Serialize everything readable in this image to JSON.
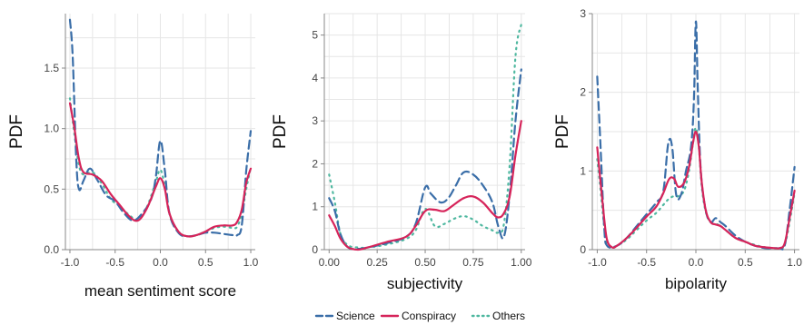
{
  "colors": {
    "science": "#3a6ea8",
    "conspiracy": "#d6245a",
    "others": "#4fb8a0",
    "grid": "#e6e6e6",
    "axis": "#888888"
  },
  "legend": {
    "items": [
      {
        "key": "science",
        "label": "Science",
        "dash": "dashed"
      },
      {
        "key": "conspiracy",
        "label": "Conspiracy",
        "dash": "solid"
      },
      {
        "key": "others",
        "label": "Others",
        "dash": "dotted"
      }
    ]
  },
  "chart_data": [
    {
      "type": "line",
      "title": "",
      "xlabel": "mean sentiment score",
      "ylabel": "PDF",
      "xlim": [
        -1.05,
        1.05
      ],
      "ylim": [
        0,
        1.95
      ],
      "xticks": [
        -1.0,
        -0.5,
        0.0,
        0.5,
        1.0
      ],
      "xtick_labels": [
        "-1.0",
        "-0.5",
        "0.0",
        "0.5",
        "1.0"
      ],
      "yticks": [
        0.0,
        0.5,
        1.0,
        1.5
      ],
      "ytick_labels": [
        "0.0",
        "0.5",
        "1.0",
        "1.5"
      ],
      "grid": true,
      "series": [
        {
          "key": "science",
          "points": [
            [
              -1.0,
              1.9
            ],
            [
              -0.97,
              1.6
            ],
            [
              -0.93,
              0.75
            ],
            [
              -0.9,
              0.5
            ],
            [
              -0.85,
              0.57
            ],
            [
              -0.78,
              0.67
            ],
            [
              -0.7,
              0.58
            ],
            [
              -0.6,
              0.45
            ],
            [
              -0.5,
              0.4
            ],
            [
              -0.4,
              0.3
            ],
            [
              -0.3,
              0.24
            ],
            [
              -0.2,
              0.3
            ],
            [
              -0.1,
              0.42
            ],
            [
              -0.05,
              0.6
            ],
            [
              0.0,
              0.9
            ],
            [
              0.05,
              0.65
            ],
            [
              0.1,
              0.3
            ],
            [
              0.2,
              0.14
            ],
            [
              0.3,
              0.11
            ],
            [
              0.4,
              0.12
            ],
            [
              0.5,
              0.14
            ],
            [
              0.6,
              0.14
            ],
            [
              0.7,
              0.13
            ],
            [
              0.8,
              0.12
            ],
            [
              0.85,
              0.12
            ],
            [
              0.9,
              0.2
            ],
            [
              0.95,
              0.65
            ],
            [
              1.0,
              0.98
            ]
          ]
        },
        {
          "key": "conspiracy",
          "points": [
            [
              -1.0,
              1.21
            ],
            [
              -0.95,
              1.0
            ],
            [
              -0.9,
              0.75
            ],
            [
              -0.85,
              0.64
            ],
            [
              -0.75,
              0.62
            ],
            [
              -0.65,
              0.57
            ],
            [
              -0.55,
              0.46
            ],
            [
              -0.45,
              0.37
            ],
            [
              -0.35,
              0.28
            ],
            [
              -0.25,
              0.24
            ],
            [
              -0.15,
              0.34
            ],
            [
              -0.05,
              0.52
            ],
            [
              0.0,
              0.59
            ],
            [
              0.05,
              0.5
            ],
            [
              0.1,
              0.3
            ],
            [
              0.2,
              0.15
            ],
            [
              0.3,
              0.11
            ],
            [
              0.4,
              0.12
            ],
            [
              0.5,
              0.15
            ],
            [
              0.6,
              0.19
            ],
            [
              0.7,
              0.2
            ],
            [
              0.8,
              0.2
            ],
            [
              0.85,
              0.23
            ],
            [
              0.9,
              0.33
            ],
            [
              0.95,
              0.55
            ],
            [
              1.0,
              0.67
            ]
          ]
        },
        {
          "key": "others",
          "points": [
            [
              -1.0,
              1.25
            ],
            [
              -0.95,
              0.95
            ],
            [
              -0.9,
              0.7
            ],
            [
              -0.85,
              0.62
            ],
            [
              -0.75,
              0.64
            ],
            [
              -0.65,
              0.55
            ],
            [
              -0.55,
              0.42
            ],
            [
              -0.45,
              0.36
            ],
            [
              -0.35,
              0.29
            ],
            [
              -0.25,
              0.25
            ],
            [
              -0.15,
              0.35
            ],
            [
              -0.05,
              0.56
            ],
            [
              0.0,
              0.66
            ],
            [
              0.05,
              0.52
            ],
            [
              0.1,
              0.3
            ],
            [
              0.2,
              0.15
            ],
            [
              0.3,
              0.11
            ],
            [
              0.4,
              0.12
            ],
            [
              0.5,
              0.15
            ],
            [
              0.6,
              0.18
            ],
            [
              0.7,
              0.19
            ],
            [
              0.8,
              0.18
            ],
            [
              0.85,
              0.19
            ],
            [
              0.9,
              0.3
            ],
            [
              0.95,
              0.5
            ],
            [
              1.0,
              0.68
            ]
          ]
        }
      ]
    },
    {
      "type": "line",
      "title": "",
      "xlabel": "subjectivity",
      "ylabel": "PDF",
      "xlim": [
        -0.025,
        1.02
      ],
      "ylim": [
        0,
        5.5
      ],
      "xticks": [
        0.0,
        0.25,
        0.5,
        0.75,
        1.0
      ],
      "xtick_labels": [
        "0.00",
        "0.25",
        "0.50",
        "0.75",
        "1.00"
      ],
      "yticks": [
        0,
        1,
        2,
        3,
        4,
        5
      ],
      "ytick_labels": [
        "0",
        "1",
        "2",
        "3",
        "4",
        "5"
      ],
      "grid": true,
      "series": [
        {
          "key": "science",
          "points": [
            [
              0.0,
              1.2
            ],
            [
              0.03,
              0.9
            ],
            [
              0.06,
              0.35
            ],
            [
              0.1,
              0.05
            ],
            [
              0.15,
              0.02
            ],
            [
              0.2,
              0.05
            ],
            [
              0.3,
              0.15
            ],
            [
              0.4,
              0.3
            ],
            [
              0.45,
              0.6
            ],
            [
              0.5,
              1.45
            ],
            [
              0.53,
              1.3
            ],
            [
              0.58,
              1.1
            ],
            [
              0.62,
              1.2
            ],
            [
              0.66,
              1.5
            ],
            [
              0.7,
              1.8
            ],
            [
              0.75,
              1.75
            ],
            [
              0.8,
              1.5
            ],
            [
              0.85,
              1.1
            ],
            [
              0.88,
              0.55
            ],
            [
              0.91,
              0.3
            ],
            [
              0.94,
              1.3
            ],
            [
              0.97,
              3.0
            ],
            [
              1.0,
              4.2
            ]
          ]
        },
        {
          "key": "conspiracy",
          "points": [
            [
              0.0,
              0.8
            ],
            [
              0.03,
              0.55
            ],
            [
              0.06,
              0.25
            ],
            [
              0.1,
              0.05
            ],
            [
              0.15,
              0.0
            ],
            [
              0.2,
              0.05
            ],
            [
              0.3,
              0.18
            ],
            [
              0.4,
              0.3
            ],
            [
              0.45,
              0.55
            ],
            [
              0.5,
              0.9
            ],
            [
              0.55,
              0.93
            ],
            [
              0.6,
              0.9
            ],
            [
              0.65,
              1.05
            ],
            [
              0.7,
              1.2
            ],
            [
              0.75,
              1.24
            ],
            [
              0.8,
              1.1
            ],
            [
              0.85,
              0.85
            ],
            [
              0.88,
              0.75
            ],
            [
              0.91,
              0.85
            ],
            [
              0.94,
              1.25
            ],
            [
              0.97,
              2.2
            ],
            [
              1.0,
              3.0
            ]
          ]
        },
        {
          "key": "others",
          "points": [
            [
              0.0,
              1.75
            ],
            [
              0.03,
              1.1
            ],
            [
              0.06,
              0.35
            ],
            [
              0.1,
              0.1
            ],
            [
              0.15,
              0.05
            ],
            [
              0.2,
              0.05
            ],
            [
              0.3,
              0.12
            ],
            [
              0.4,
              0.25
            ],
            [
              0.45,
              0.45
            ],
            [
              0.5,
              0.95
            ],
            [
              0.55,
              0.55
            ],
            [
              0.6,
              0.6
            ],
            [
              0.65,
              0.72
            ],
            [
              0.7,
              0.78
            ],
            [
              0.75,
              0.7
            ],
            [
              0.8,
              0.55
            ],
            [
              0.85,
              0.45
            ],
            [
              0.88,
              0.4
            ],
            [
              0.91,
              0.6
            ],
            [
              0.94,
              2.0
            ],
            [
              0.97,
              4.5
            ],
            [
              1.0,
              5.25
            ]
          ]
        }
      ]
    },
    {
      "type": "line",
      "title": "",
      "xlabel": "bipolarity",
      "ylabel": "PDF",
      "xlim": [
        -1.05,
        1.05
      ],
      "ylim": [
        0,
        3.0
      ],
      "xticks": [
        -1.0,
        -0.5,
        0.0,
        0.5,
        1.0
      ],
      "xtick_labels": [
        "-1.0",
        "-0.5",
        "0.0",
        "0.5",
        "1.0"
      ],
      "yticks": [
        0,
        1,
        2,
        3
      ],
      "ytick_labels": [
        "0",
        "1",
        "2",
        "3"
      ],
      "grid": true,
      "series": [
        {
          "key": "science",
          "points": [
            [
              -1.0,
              2.2
            ],
            [
              -0.97,
              1.4
            ],
            [
              -0.93,
              0.3
            ],
            [
              -0.9,
              0.05
            ],
            [
              -0.8,
              0.05
            ],
            [
              -0.7,
              0.15
            ],
            [
              -0.6,
              0.3
            ],
            [
              -0.5,
              0.45
            ],
            [
              -0.4,
              0.6
            ],
            [
              -0.33,
              0.75
            ],
            [
              -0.28,
              1.35
            ],
            [
              -0.24,
              1.3
            ],
            [
              -0.2,
              0.7
            ],
            [
              -0.15,
              0.7
            ],
            [
              -0.1,
              1.0
            ],
            [
              -0.05,
              1.3
            ],
            [
              -0.02,
              1.9
            ],
            [
              0.0,
              2.9
            ],
            [
              0.02,
              2.0
            ],
            [
              0.05,
              1.0
            ],
            [
              0.1,
              0.5
            ],
            [
              0.15,
              0.35
            ],
            [
              0.2,
              0.4
            ],
            [
              0.25,
              0.35
            ],
            [
              0.3,
              0.3
            ],
            [
              0.4,
              0.18
            ],
            [
              0.5,
              0.1
            ],
            [
              0.6,
              0.05
            ],
            [
              0.7,
              0.02
            ],
            [
              0.8,
              0.02
            ],
            [
              0.85,
              0.02
            ],
            [
              0.9,
              0.05
            ],
            [
              0.95,
              0.5
            ],
            [
              1.0,
              1.05
            ]
          ]
        },
        {
          "key": "conspiracy",
          "points": [
            [
              -1.0,
              1.3
            ],
            [
              -0.97,
              0.9
            ],
            [
              -0.93,
              0.4
            ],
            [
              -0.9,
              0.12
            ],
            [
              -0.85,
              0.03
            ],
            [
              -0.8,
              0.05
            ],
            [
              -0.7,
              0.15
            ],
            [
              -0.6,
              0.28
            ],
            [
              -0.5,
              0.42
            ],
            [
              -0.4,
              0.55
            ],
            [
              -0.33,
              0.72
            ],
            [
              -0.27,
              0.9
            ],
            [
              -0.22,
              0.9
            ],
            [
              -0.18,
              0.8
            ],
            [
              -0.12,
              0.85
            ],
            [
              -0.07,
              1.05
            ],
            [
              -0.03,
              1.35
            ],
            [
              0.0,
              1.5
            ],
            [
              0.03,
              1.3
            ],
            [
              0.06,
              0.85
            ],
            [
              0.1,
              0.5
            ],
            [
              0.15,
              0.35
            ],
            [
              0.2,
              0.32
            ],
            [
              0.25,
              0.3
            ],
            [
              0.3,
              0.25
            ],
            [
              0.4,
              0.15
            ],
            [
              0.5,
              0.1
            ],
            [
              0.6,
              0.05
            ],
            [
              0.7,
              0.03
            ],
            [
              0.8,
              0.02
            ],
            [
              0.85,
              0.02
            ],
            [
              0.9,
              0.08
            ],
            [
              0.95,
              0.4
            ],
            [
              1.0,
              0.75
            ]
          ]
        },
        {
          "key": "others",
          "points": [
            [
              -1.0,
              1.15
            ],
            [
              -0.97,
              0.8
            ],
            [
              -0.93,
              0.3
            ],
            [
              -0.9,
              0.08
            ],
            [
              -0.85,
              0.02
            ],
            [
              -0.8,
              0.05
            ],
            [
              -0.7,
              0.13
            ],
            [
              -0.6,
              0.25
            ],
            [
              -0.5,
              0.37
            ],
            [
              -0.4,
              0.47
            ],
            [
              -0.33,
              0.57
            ],
            [
              -0.27,
              0.65
            ],
            [
              -0.22,
              0.68
            ],
            [
              -0.18,
              0.68
            ],
            [
              -0.12,
              0.75
            ],
            [
              -0.07,
              1.0
            ],
            [
              -0.03,
              1.35
            ],
            [
              0.0,
              1.55
            ],
            [
              0.03,
              1.3
            ],
            [
              0.06,
              0.8
            ],
            [
              0.1,
              0.48
            ],
            [
              0.15,
              0.35
            ],
            [
              0.2,
              0.33
            ],
            [
              0.25,
              0.3
            ],
            [
              0.3,
              0.25
            ],
            [
              0.4,
              0.15
            ],
            [
              0.5,
              0.1
            ],
            [
              0.6,
              0.06
            ],
            [
              0.7,
              0.03
            ],
            [
              0.8,
              0.02
            ],
            [
              0.85,
              0.02
            ],
            [
              0.9,
              0.06
            ],
            [
              0.95,
              0.35
            ],
            [
              1.0,
              0.72
            ]
          ]
        }
      ]
    }
  ]
}
